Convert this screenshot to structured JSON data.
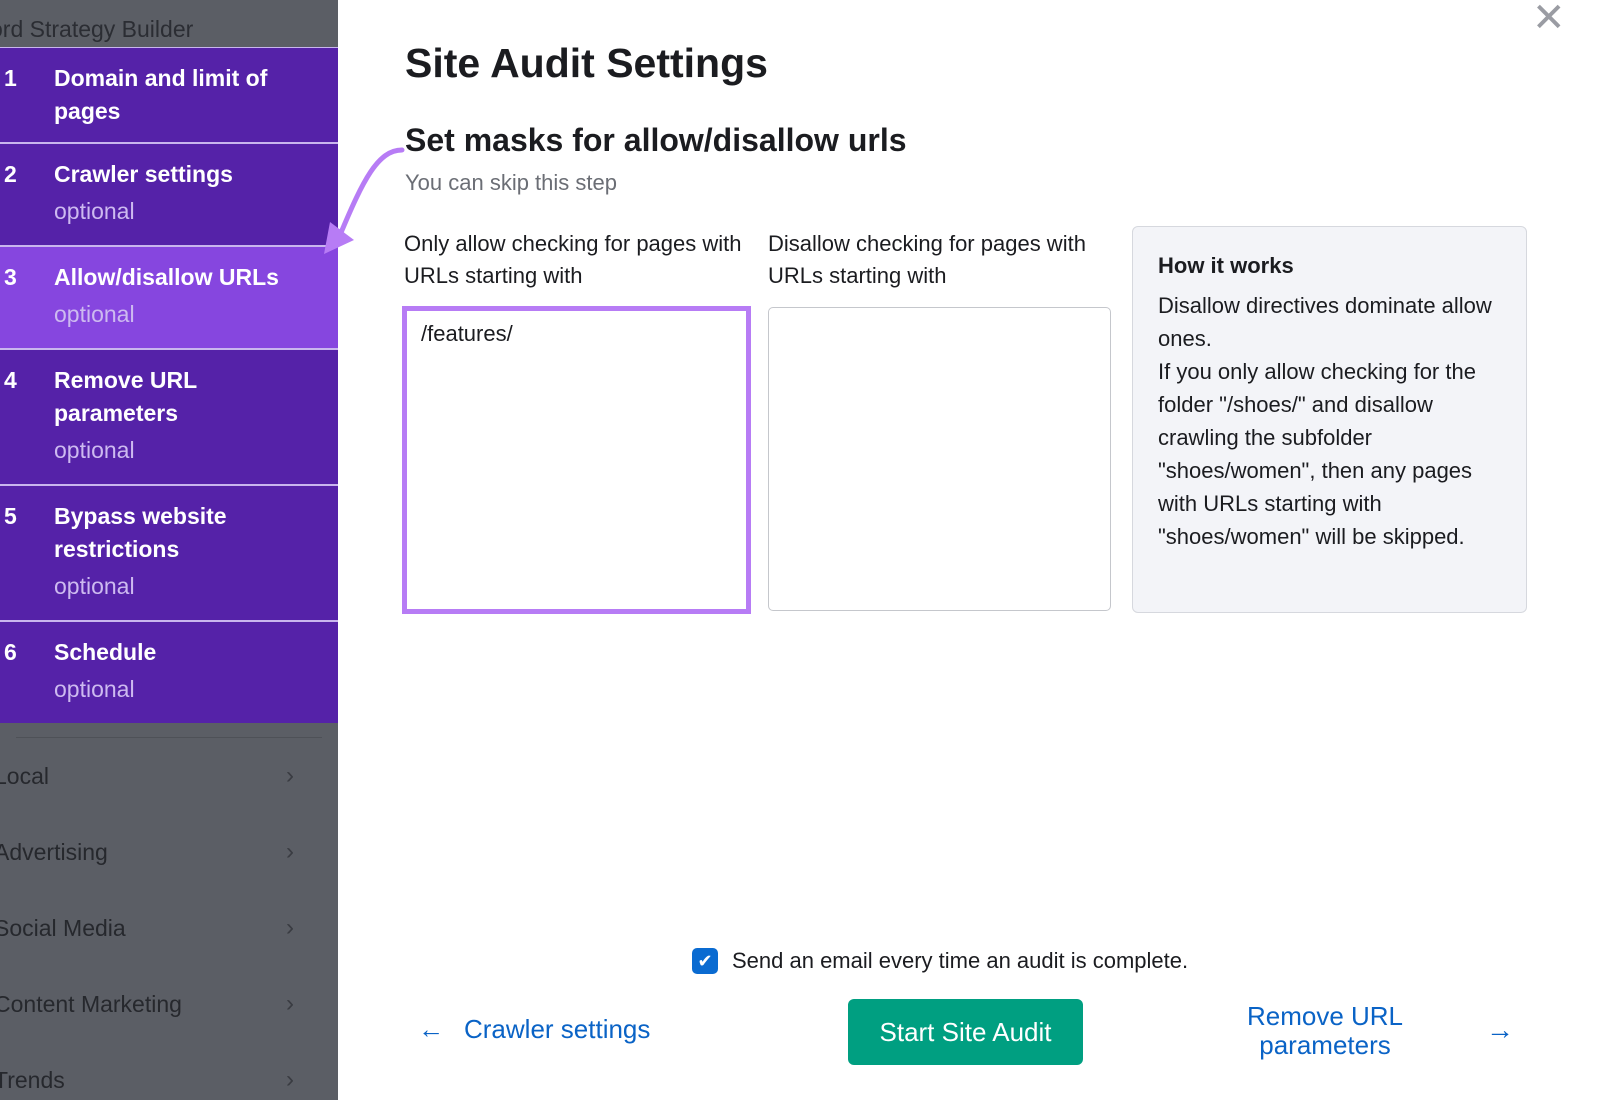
{
  "sidebar": {
    "top_label": "ord Strategy Builder",
    "steps": [
      {
        "num": "1",
        "title": "Domain and limit of pages",
        "optional": ""
      },
      {
        "num": "2",
        "title": "Crawler settings",
        "optional": "optional"
      },
      {
        "num": "3",
        "title": "Allow/disallow URLs",
        "optional": "optional",
        "active": true
      },
      {
        "num": "4",
        "title": "Remove URL parameters",
        "optional": "optional"
      },
      {
        "num": "5",
        "title": "Bypass website restrictions",
        "optional": "optional"
      },
      {
        "num": "6",
        "title": "Schedule",
        "optional": "optional"
      }
    ],
    "nav": [
      {
        "label": "Local"
      },
      {
        "label": "Advertising"
      },
      {
        "label": "Social Media"
      },
      {
        "label": "Content Marketing"
      },
      {
        "label": "Trends"
      }
    ]
  },
  "dialog": {
    "title": "Site Audit Settings",
    "section_title": "Set masks for allow/disallow urls",
    "section_sub": "You can skip this step",
    "allow_label": "Only allow checking for pages with URLs starting with",
    "allow_value": "/features/",
    "disallow_label": "Disallow checking for pages with URLs starting with",
    "disallow_value": "",
    "how": {
      "title": "How it works",
      "body": "Disallow directives dominate allow ones.\nIf you only allow checking for the folder \"/shoes/\" and disallow crawling the subfolder \"shoes/women\", then any pages with URLs starting with \"shoes/women\" will be skipped."
    },
    "email_label": "Send an email every time an audit is complete.",
    "email_checked": true,
    "back_label": "Crawler settings",
    "start_label": "Start Site Audit",
    "next_label": "Remove URL parameters"
  },
  "colors": {
    "step_bg": "#5522a8",
    "step_active": "#8646df",
    "accent_green": "#009f81",
    "link": "#0a63c6",
    "annotation_arrow": "#b77cf5"
  }
}
